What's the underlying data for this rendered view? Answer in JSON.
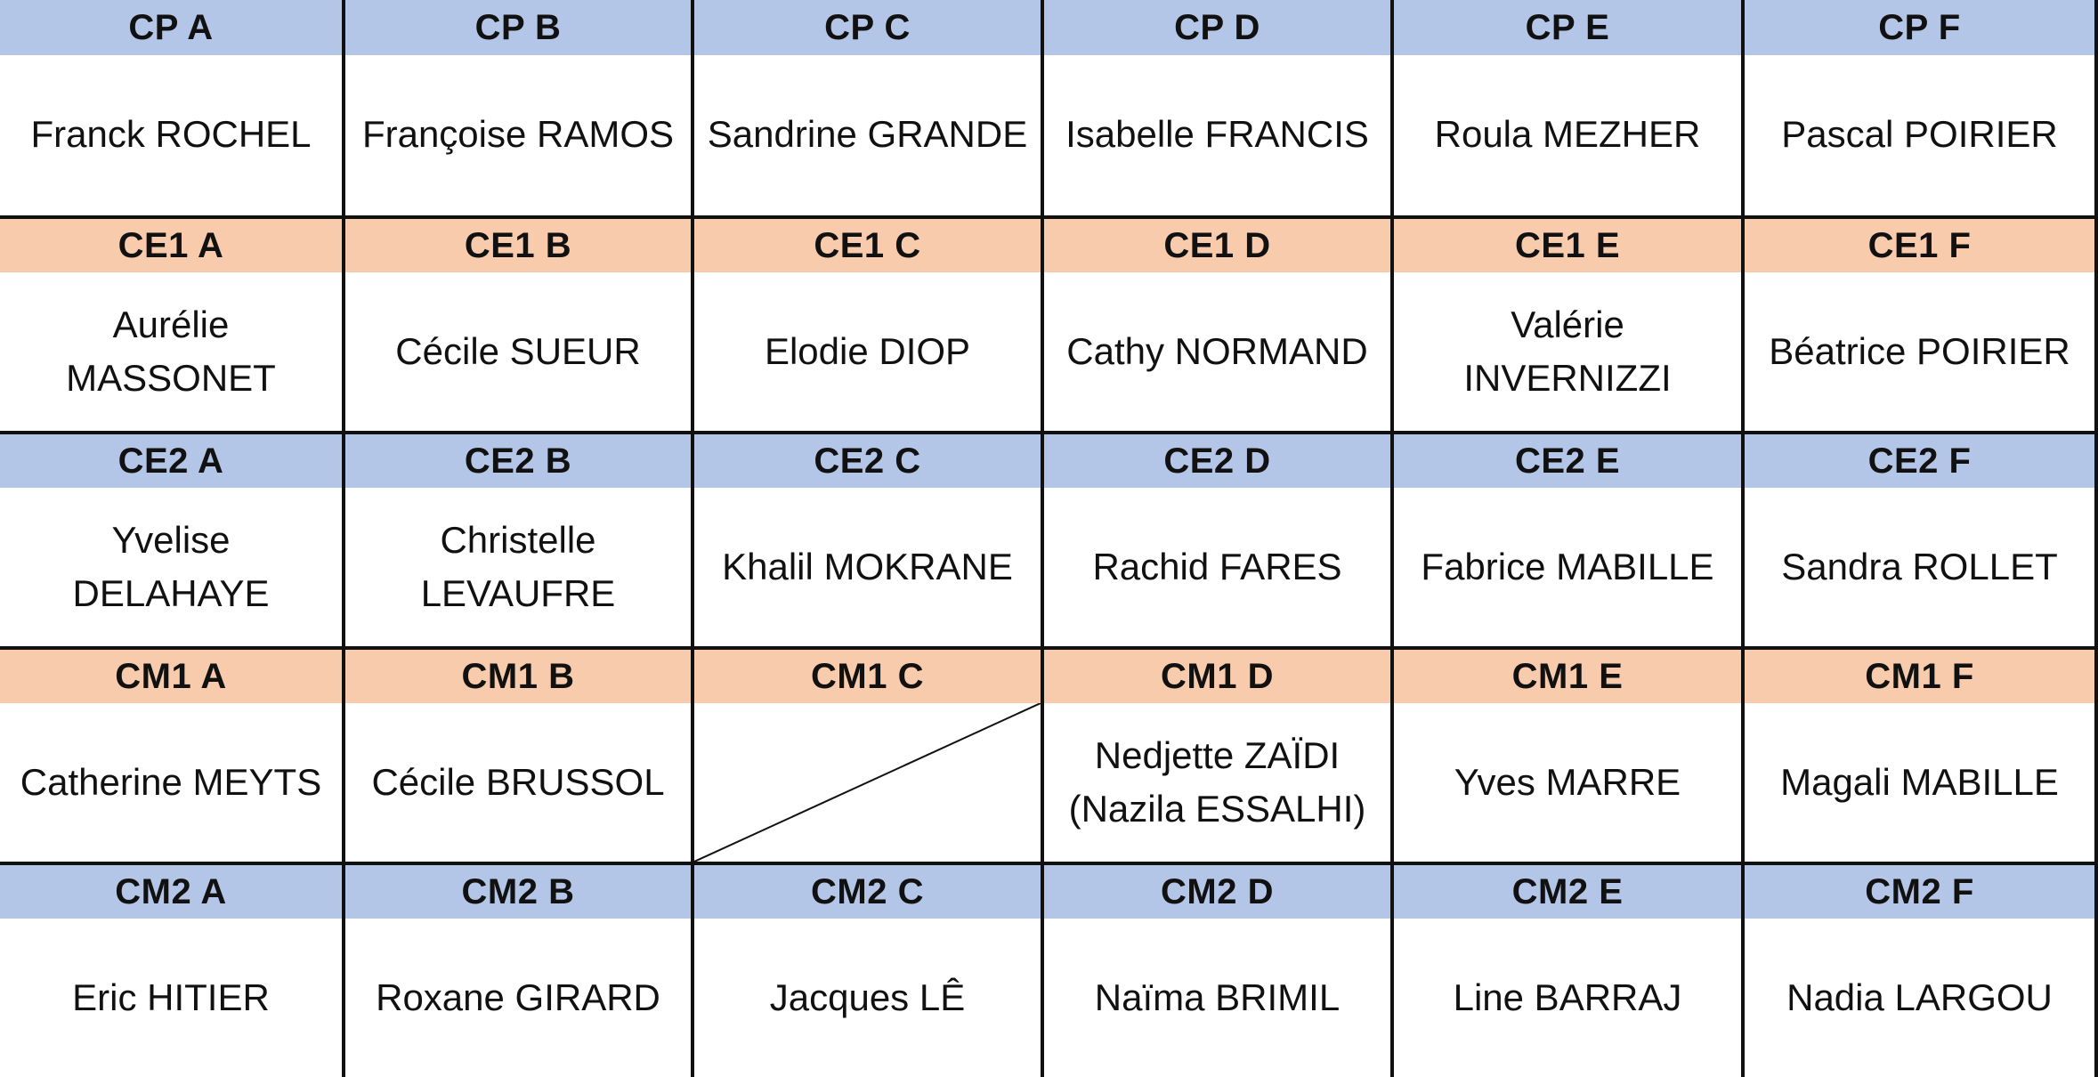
{
  "rows": [
    {
      "color": "#b4c6e7",
      "headers": [
        "CP A",
        "CP B",
        "CP C",
        "CP D",
        "CP E",
        "CP F"
      ],
      "names": [
        "Franck ROCHEL",
        "Françoise RAMOS",
        "Sandrine GRANDE",
        "Isabelle FRANCIS",
        "Roula MEZHER",
        "Pascal POIRIER"
      ]
    },
    {
      "color": "#f8cbad",
      "headers": [
        "CE1 A",
        "CE1 B",
        "CE1 C",
        "CE1 D",
        "CE1 E",
        "CE1 F"
      ],
      "names": [
        "Aurélie MASSONET",
        "Cécile SUEUR",
        "Elodie DIOP",
        "Cathy NORMAND",
        "Valérie INVERNIZZI",
        "Béatrice POIRIER"
      ]
    },
    {
      "color": "#b4c6e7",
      "headers": [
        "CE2 A",
        "CE2 B",
        "CE2 C",
        "CE2 D",
        "CE2 E",
        "CE2 F"
      ],
      "names": [
        "Yvelise DELAHAYE",
        "Christelle LEVAUFRE",
        "Khalil MOKRANE",
        "Rachid FARES",
        "Fabrice MABILLE",
        "Sandra ROLLET"
      ]
    },
    {
      "color": "#f8cbad",
      "headers": [
        "CM1 A",
        "CM1 B",
        "CM1 C",
        "CM1 D",
        "CM1 E",
        "CM1 F"
      ],
      "names": [
        "Catherine MEYTS",
        "Cécile BRUSSOL",
        "",
        "Nedjette ZAÏDI (Nazila ESSALHI)",
        "Yves MARRE",
        "Magali MABILLE"
      ]
    },
    {
      "color": "#b4c6e7",
      "headers": [
        "CM2 A",
        "CM2 B",
        "CM2 C",
        "CM2 D",
        "CM2 E",
        "CM2 F"
      ],
      "names": [
        "Eric HITIER",
        "Roxane GIRARD",
        "Jacques LÊ",
        "Naïma BRIMIL",
        "Line BARRAJ",
        "Nadia LARGOU"
      ]
    }
  ]
}
